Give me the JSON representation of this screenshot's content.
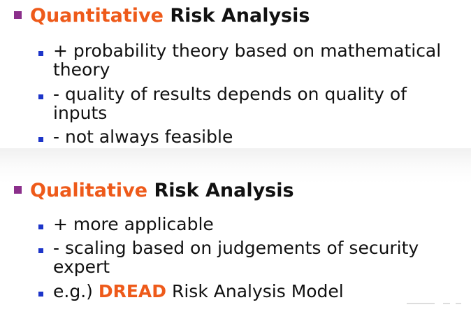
{
  "sections": [
    {
      "accent": "Quantitative",
      "rest": " Risk Analysis",
      "items": [
        "+ probability theory based on mathematical theory",
        "- quality of results depends on quality of inputs",
        "- not always feasible"
      ]
    },
    {
      "accent": "Qualitative",
      "rest": " Risk Analysis",
      "items": [
        "+ more applicable",
        "- scaling based on judgements of security expert"
      ],
      "model_item": {
        "prefix": "e.g.) ",
        "highlight": "DREAD",
        "suffix": " Risk Analysis Model"
      }
    }
  ],
  "colors": {
    "heading_bullet": "#8b2f8b",
    "accent": "#ee5a1a",
    "item_bullet": "#1d35c9",
    "text": "#111111"
  }
}
